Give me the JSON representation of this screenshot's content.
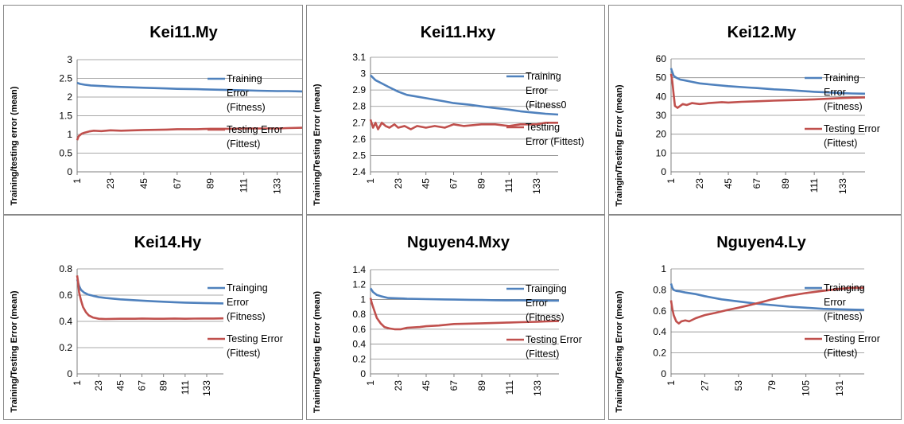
{
  "chart_data": [
    {
      "type": "line",
      "title": "Kei11.My",
      "ylabel": "Training/testing error  (mean)",
      "ylim": [
        0,
        3
      ],
      "yticks": [
        "0",
        "0.5",
        "1",
        "1.5",
        "2",
        "2.5",
        "3"
      ],
      "xticks": [
        "1",
        "23",
        "45",
        "67",
        "89",
        "111",
        "133"
      ],
      "x_range": [
        1,
        150
      ],
      "series": [
        {
          "name": [
            "Training",
            "Error",
            "(Fitness)"
          ],
          "color": "#4f81bd",
          "x": [
            1,
            3,
            6,
            10,
            15,
            23,
            30,
            45,
            60,
            67,
            80,
            89,
            100,
            111,
            120,
            133,
            140,
            150
          ],
          "y": [
            2.38,
            2.35,
            2.33,
            2.31,
            2.3,
            2.28,
            2.27,
            2.25,
            2.23,
            2.22,
            2.21,
            2.2,
            2.19,
            2.18,
            2.17,
            2.16,
            2.16,
            2.15
          ]
        },
        {
          "name": [
            "Testing Error",
            "(Fittest)"
          ],
          "color": "#c0504d",
          "x": [
            1,
            2,
            4,
            6,
            9,
            12,
            17,
            23,
            30,
            45,
            60,
            67,
            80,
            89,
            100,
            111,
            120,
            133,
            140,
            150
          ],
          "y": [
            0.85,
            0.95,
            1.02,
            1.05,
            1.08,
            1.1,
            1.09,
            1.11,
            1.1,
            1.12,
            1.13,
            1.14,
            1.14,
            1.15,
            1.15,
            1.16,
            1.16,
            1.16,
            1.17,
            1.18
          ]
        }
      ]
    },
    {
      "type": "line",
      "title": "Kei11.Hxy",
      "ylabel": "Training/Testing Error (mean)",
      "ylim": [
        2.4,
        3.1
      ],
      "yticks": [
        "2.4",
        "2.5",
        "2.6",
        "2.7",
        "2.8",
        "2.9",
        "3",
        "3.1"
      ],
      "xticks": [
        "1",
        "23",
        "45",
        "67",
        "89",
        "111",
        "133"
      ],
      "x_range": [
        1,
        150
      ],
      "series": [
        {
          "name": [
            "Training",
            "Error",
            "(Fitness0"
          ],
          "color": "#4f81bd",
          "x": [
            1,
            5,
            10,
            15,
            23,
            30,
            45,
            60,
            67,
            80,
            89,
            100,
            111,
            120,
            133,
            140,
            150
          ],
          "y": [
            2.99,
            2.96,
            2.94,
            2.92,
            2.89,
            2.87,
            2.85,
            2.83,
            2.82,
            2.81,
            2.8,
            2.79,
            2.78,
            2.77,
            2.76,
            2.755,
            2.75
          ]
        },
        {
          "name": [
            "Testting",
            "Error (Fittest)"
          ],
          "color": "#c0504d",
          "x": [
            1,
            3,
            5,
            7,
            10,
            13,
            16,
            20,
            23,
            28,
            33,
            38,
            45,
            52,
            60,
            67,
            75,
            89,
            100,
            111,
            120,
            133,
            140,
            150
          ],
          "y": [
            2.72,
            2.67,
            2.7,
            2.66,
            2.7,
            2.68,
            2.67,
            2.69,
            2.67,
            2.68,
            2.66,
            2.68,
            2.67,
            2.68,
            2.67,
            2.69,
            2.68,
            2.69,
            2.69,
            2.68,
            2.69,
            2.69,
            2.7,
            2.7
          ]
        }
      ]
    },
    {
      "type": "line",
      "title": "Kei12.My",
      "ylabel": "Traingin/Testing Error (mean)",
      "ylim": [
        0,
        60
      ],
      "yticks": [
        "0",
        "10",
        "20",
        "30",
        "40",
        "50",
        "60"
      ],
      "xticks": [
        "1",
        "23",
        "45",
        "67",
        "89",
        "111",
        "133"
      ],
      "x_range": [
        1,
        150
      ],
      "series": [
        {
          "name": [
            "Training",
            "Error",
            "(Fitness)"
          ],
          "color": "#4f81bd",
          "x": [
            1,
            2,
            3,
            5,
            8,
            12,
            17,
            23,
            30,
            45,
            60,
            67,
            80,
            89,
            100,
            111,
            120,
            133,
            140,
            150
          ],
          "y": [
            55,
            53,
            51,
            50,
            49,
            48.5,
            47.8,
            47,
            46.5,
            45.5,
            44.8,
            44.5,
            43.8,
            43.5,
            43,
            42.5,
            42.2,
            41.8,
            41.6,
            41.5
          ]
        },
        {
          "name": [
            "Testing Error",
            "(Fittest)"
          ],
          "color": "#c0504d",
          "x": [
            1,
            2,
            3,
            4,
            6,
            8,
            10,
            13,
            17,
            23,
            30,
            40,
            45,
            55,
            67,
            80,
            89,
            100,
            111,
            120,
            133,
            140,
            150
          ],
          "y": [
            52,
            48,
            41,
            35,
            34,
            35,
            36,
            35.5,
            36.5,
            36,
            36.5,
            37,
            36.8,
            37.2,
            37.5,
            37.8,
            38,
            38.2,
            38.5,
            38.8,
            39.2,
            39.4,
            39.5
          ]
        }
      ]
    },
    {
      "type": "line",
      "title": "Kei14.Hy",
      "ylabel": "Training/Testing Error (mean)",
      "ylim": [
        0,
        0.8
      ],
      "yticks": [
        "0",
        "0.2",
        "0.4",
        "0.6",
        "0.8"
      ],
      "xticks": [
        "1",
        "23",
        "45",
        "67",
        "89",
        "111",
        "133"
      ],
      "x_range": [
        1,
        150
      ],
      "series": [
        {
          "name": [
            "Trainging",
            "Error",
            "(Fitness)"
          ],
          "color": "#4f81bd",
          "x": [
            1,
            3,
            5,
            8,
            12,
            17,
            23,
            30,
            45,
            60,
            67,
            80,
            89,
            100,
            111,
            120,
            133,
            140,
            150
          ],
          "y": [
            0.72,
            0.67,
            0.64,
            0.62,
            0.605,
            0.595,
            0.585,
            0.578,
            0.568,
            0.561,
            0.558,
            0.553,
            0.55,
            0.546,
            0.543,
            0.541,
            0.539,
            0.538,
            0.537
          ]
        },
        {
          "name": [
            "Testing Error",
            "(Fittest)"
          ],
          "color": "#c0504d",
          "x": [
            1,
            2,
            3,
            5,
            7,
            10,
            13,
            17,
            20,
            23,
            30,
            45,
            60,
            67,
            80,
            89,
            100,
            111,
            120,
            133,
            140,
            150
          ],
          "y": [
            0.75,
            0.7,
            0.62,
            0.56,
            0.51,
            0.47,
            0.445,
            0.43,
            0.425,
            0.42,
            0.418,
            0.42,
            0.42,
            0.422,
            0.42,
            0.42,
            0.422,
            0.42,
            0.421,
            0.422,
            0.422,
            0.423
          ]
        }
      ]
    },
    {
      "type": "line",
      "title": "Nguyen4.Mxy",
      "ylabel": "Training/Testing Error (mean)",
      "ylim": [
        0,
        1.4
      ],
      "yticks": [
        "0",
        "0.2",
        "0.4",
        "0.6",
        "0.8",
        "1",
        "1.2",
        "1.4"
      ],
      "xticks": [
        "1",
        "23",
        "45",
        "67",
        "89",
        "111",
        "133"
      ],
      "x_range": [
        1,
        150
      ],
      "series": [
        {
          "name": [
            "Trainging",
            "Error",
            "(Fitness)"
          ],
          "color": "#4f81bd",
          "x": [
            1,
            3,
            6,
            10,
            15,
            23,
            30,
            45,
            60,
            67,
            80,
            89,
            100,
            111,
            120,
            133,
            140,
            150
          ],
          "y": [
            1.15,
            1.1,
            1.06,
            1.04,
            1.02,
            1.015,
            1.01,
            1.005,
            1.0,
            0.998,
            0.995,
            0.993,
            0.99,
            0.988,
            0.987,
            0.985,
            0.984,
            0.983
          ]
        },
        {
          "name": [
            "Testing Error",
            "(Fittest)"
          ],
          "color": "#c0504d",
          "x": [
            1,
            2,
            4,
            6,
            9,
            12,
            16,
            20,
            25,
            30,
            40,
            45,
            55,
            67,
            80,
            89,
            100,
            111,
            120,
            133,
            140,
            150
          ],
          "y": [
            1.02,
            0.95,
            0.85,
            0.75,
            0.68,
            0.63,
            0.61,
            0.6,
            0.6,
            0.62,
            0.63,
            0.64,
            0.65,
            0.67,
            0.675,
            0.68,
            0.685,
            0.69,
            0.695,
            0.7,
            0.705,
            0.71
          ]
        }
      ]
    },
    {
      "type": "line",
      "title": "Nguyen4.Ly",
      "ylabel": "Training/Testing Error (mean)",
      "ylim": [
        0,
        1
      ],
      "yticks": [
        "0",
        "0.2",
        "0.4",
        "0.6",
        "0.8",
        "1"
      ],
      "xticks": [
        "1",
        "27",
        "53",
        "79",
        "105",
        "131"
      ],
      "x_range": [
        1,
        150
      ],
      "series": [
        {
          "name": [
            "Trainging",
            "Error",
            "(Fitness)"
          ],
          "color": "#4f81bd",
          "x": [
            1,
            2,
            3,
            5,
            8,
            12,
            20,
            27,
            40,
            53,
            66,
            79,
            92,
            105,
            118,
            131,
            140,
            150
          ],
          "y": [
            0.86,
            0.82,
            0.8,
            0.79,
            0.785,
            0.775,
            0.76,
            0.74,
            0.71,
            0.69,
            0.67,
            0.655,
            0.64,
            0.63,
            0.62,
            0.615,
            0.612,
            0.61
          ]
        },
        {
          "name": [
            "Testing Error",
            "(Fittest)"
          ],
          "color": "#c0504d",
          "x": [
            1,
            2,
            3,
            5,
            7,
            9,
            12,
            15,
            20,
            27,
            35,
            45,
            53,
            60,
            70,
            79,
            90,
            105,
            118,
            131,
            140,
            150
          ],
          "y": [
            0.7,
            0.62,
            0.56,
            0.5,
            0.48,
            0.5,
            0.51,
            0.5,
            0.53,
            0.56,
            0.58,
            0.61,
            0.63,
            0.65,
            0.68,
            0.71,
            0.74,
            0.77,
            0.79,
            0.81,
            0.82,
            0.82
          ]
        }
      ]
    }
  ]
}
